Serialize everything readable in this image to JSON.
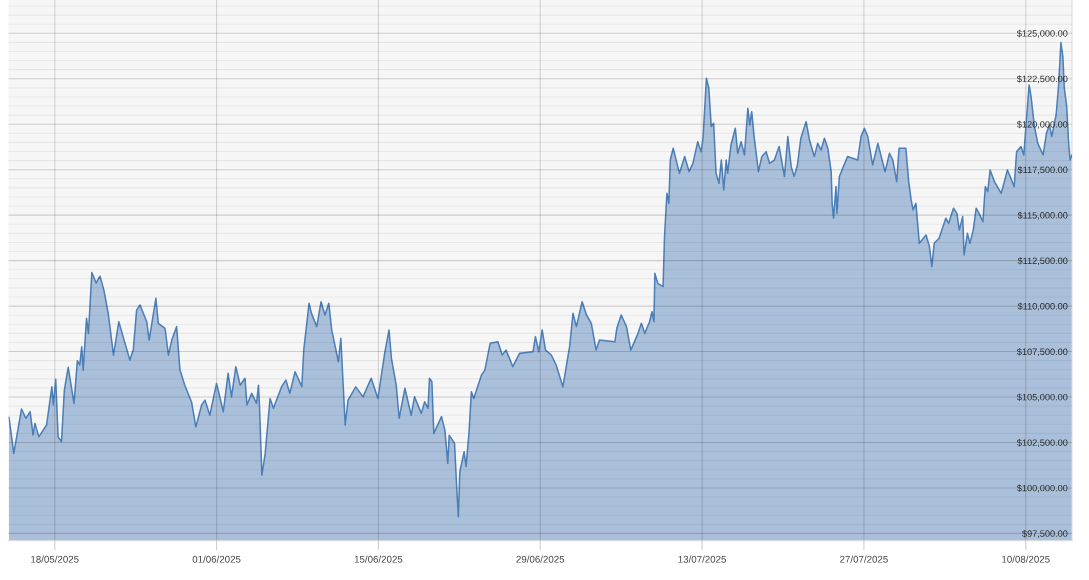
{
  "chart_data": {
    "type": "area",
    "x": [
      "2025-05-14T01:00",
      "2025-05-14T11:00",
      "2025-05-15T03:00",
      "2025-05-15T12:00",
      "2025-05-15T21:00",
      "2025-05-16T03:00",
      "2025-05-16T07:00",
      "2025-05-16T15:00",
      "2025-05-17T07:00",
      "2025-05-17T18:00",
      "2025-05-17T21:00",
      "2025-05-18T02:00",
      "2025-05-18T07:00",
      "2025-05-18T14:00",
      "2025-05-18T20:00",
      "2025-05-19T04:00",
      "2025-05-19T16:00",
      "2025-05-19T23:00",
      "2025-05-20T04:00",
      "2025-05-20T08:00",
      "2025-05-20T11:00",
      "2025-05-20T18:00",
      "2025-05-20T22:00",
      "2025-05-21T05:00",
      "2025-05-21T14:00",
      "2025-05-21T22:00",
      "2025-05-22T06:00",
      "2025-05-22T15:00",
      "2025-05-22T19:00",
      "2025-05-23T02:00",
      "2025-05-23T13:00",
      "2025-05-24T02:00",
      "2025-05-24T12:00",
      "2025-05-24T19:00",
      "2025-05-25T02:00",
      "2025-05-25T09:00",
      "2025-05-25T23:00",
      "2025-05-26T04:00",
      "2025-05-26T18:00",
      "2025-05-26T23:00",
      "2025-05-27T13:00",
      "2025-05-27T20:00",
      "2025-05-28T03:00",
      "2025-05-28T13:00",
      "2025-05-28T20:00",
      "2025-05-29T06:00",
      "2025-05-29T20:00",
      "2025-05-30T05:00",
      "2025-05-30T17:00",
      "2025-05-31T00:00",
      "2025-05-31T10:00",
      "2025-06-01T00:00",
      "2025-06-01T14:00",
      "2025-06-02T00:00",
      "2025-06-02T07:00",
      "2025-06-02T16:00",
      "2025-06-03T01:00",
      "2025-06-03T11:00",
      "2025-06-03T15:00",
      "2025-06-04T01:00",
      "2025-06-04T11:00",
      "2025-06-04T15:00",
      "2025-06-04T17:00",
      "2025-06-04T22:00",
      "2025-06-05T05:00",
      "2025-06-05T15:00",
      "2025-06-05T22:00",
      "2025-06-06T15:00",
      "2025-06-07T00:00",
      "2025-06-07T08:00",
      "2025-06-07T19:00",
      "2025-06-08T09:00",
      "2025-06-08T13:00",
      "2025-06-09T00:00",
      "2025-06-09T05:00",
      "2025-06-09T16:00",
      "2025-06-10T01:00",
      "2025-06-10T09:00",
      "2025-06-10T17:00",
      "2025-06-10T23:00",
      "2025-06-11T13:00",
      "2025-06-11T18:00",
      "2025-06-12T03:00",
      "2025-06-12T09:00",
      "2025-06-13T01:00",
      "2025-06-13T16:00",
      "2025-06-14T09:00",
      "2025-06-14T23:00",
      "2025-06-15T13:00",
      "2025-06-15T22:00",
      "2025-06-16T03:00",
      "2025-06-16T13:00",
      "2025-06-16T19:00",
      "2025-06-17T07:00",
      "2025-06-17T20:00",
      "2025-06-18T03:00",
      "2025-06-18T17:00",
      "2025-06-19T00:00",
      "2025-06-19T07:00",
      "2025-06-19T10:00",
      "2025-06-19T15:00",
      "2025-06-19T19:00",
      "2025-06-20T11:00",
      "2025-06-20T18:00",
      "2025-06-21T00:00",
      "2025-06-21T03:00",
      "2025-06-21T14:00",
      "2025-06-21T19:00",
      "2025-06-21T22:00",
      "2025-06-22T01:00",
      "2025-06-22T10:00",
      "2025-06-22T14:00",
      "2025-06-22T20:00",
      "2025-06-23T01:00",
      "2025-06-23T06:00",
      "2025-06-23T22:00",
      "2025-06-24T05:00",
      "2025-06-24T16:00",
      "2025-06-25T08:00",
      "2025-06-25T17:00",
      "2025-06-26T01:00",
      "2025-06-26T15:00",
      "2025-06-27T05:00",
      "2025-06-28T09:00",
      "2025-06-28T14:00",
      "2025-06-28T21:00",
      "2025-06-29T04:00",
      "2025-06-29T11:00",
      "2025-06-29T23:00",
      "2025-06-30T09:00",
      "2025-06-30T23:00",
      "2025-07-01T06:00",
      "2025-07-01T13:00",
      "2025-07-01T20:00",
      "2025-07-02T03:00",
      "2025-07-02T15:00",
      "2025-07-03T00:00",
      "2025-07-03T10:00",
      "2025-07-03T20:00",
      "2025-07-04T03:00",
      "2025-07-05T11:00",
      "2025-07-05T15:00",
      "2025-07-06T00:00",
      "2025-07-06T11:00",
      "2025-07-06T20:00",
      "2025-07-07T11:00",
      "2025-07-07T18:00",
      "2025-07-08T01:00",
      "2025-07-08T11:00",
      "2025-07-08T16:00",
      "2025-07-08T20:00",
      "2025-07-08T22:00",
      "2025-07-09T04:00",
      "2025-07-09T15:00",
      "2025-07-09T18:00",
      "2025-07-09T23:00",
      "2025-07-10T03:00",
      "2025-07-10T06:00",
      "2025-07-10T12:00",
      "2025-07-11T01:00",
      "2025-07-11T12:00",
      "2025-07-11T21:00",
      "2025-07-12T05:00",
      "2025-07-12T15:00",
      "2025-07-12T22:00",
      "2025-07-13T02:00",
      "2025-07-13T09:00",
      "2025-07-13T14:00",
      "2025-07-13T19:00",
      "2025-07-14T00:00",
      "2025-07-14T05:00",
      "2025-07-14T11:00",
      "2025-07-14T16:00",
      "2025-07-14T21:00",
      "2025-07-15T02:00",
      "2025-07-15T05:00",
      "2025-07-15T12:00",
      "2025-07-15T21:00",
      "2025-07-16T02:00",
      "2025-07-16T09:00",
      "2025-07-16T16:00",
      "2025-07-16T23:00",
      "2025-07-17T03:00",
      "2025-07-17T07:00",
      "2025-07-17T12:00",
      "2025-07-17T21:00",
      "2025-07-18T04:00",
      "2025-07-18T13:00",
      "2025-07-18T20:00",
      "2025-07-19T06:00",
      "2025-07-19T16:00",
      "2025-07-20T03:00",
      "2025-07-20T10:00",
      "2025-07-20T17:00",
      "2025-07-20T23:00",
      "2025-07-21T06:00",
      "2025-07-21T13:00",
      "2025-07-22T00:00",
      "2025-07-22T07:00",
      "2025-07-22T17:00",
      "2025-07-23T00:00",
      "2025-07-23T07:00",
      "2025-07-23T14:00",
      "2025-07-23T21:00",
      "2025-07-24T04:00",
      "2025-07-24T06:00",
      "2025-07-24T09:00",
      "2025-07-24T14:00",
      "2025-07-24T16:00",
      "2025-07-24T21:00",
      "2025-07-25T04:00",
      "2025-07-25T14:00",
      "2025-07-26T11:00",
      "2025-07-26T18:00",
      "2025-07-27T01:00",
      "2025-07-27T08:00",
      "2025-07-27T18:00",
      "2025-07-28T05:00",
      "2025-07-28T11:00",
      "2025-07-28T20:00",
      "2025-07-29T05:00",
      "2025-07-29T12:00",
      "2025-07-29T20:00",
      "2025-07-30T01:00",
      "2025-07-30T15:00",
      "2025-07-30T21:00",
      "2025-07-31T02:00",
      "2025-07-31T06:00",
      "2025-07-31T12:00",
      "2025-07-31T19:00",
      "2025-08-01T09:00",
      "2025-08-01T16:00",
      "2025-08-01T21:00",
      "2025-08-02T02:00",
      "2025-08-02T12:00",
      "2025-08-03T02:00",
      "2025-08-03T08:00",
      "2025-08-03T18:00",
      "2025-08-04T01:00",
      "2025-08-04T06:00",
      "2025-08-04T13:00",
      "2025-08-04T16:00",
      "2025-08-04T23:00",
      "2025-08-05T04:00",
      "2025-08-05T11:00",
      "2025-08-05T17:00",
      "2025-08-05T23:00",
      "2025-08-06T07:00",
      "2025-08-06T12:00",
      "2025-08-06T17:00",
      "2025-08-06T22:00",
      "2025-08-07T07:00",
      "2025-08-07T21:00",
      "2025-08-08T10:00",
      "2025-08-09T00:00",
      "2025-08-09T05:00",
      "2025-08-09T14:00",
      "2025-08-09T20:00",
      "2025-08-10T00:00",
      "2025-08-10T07:00",
      "2025-08-10T11:00",
      "2025-08-10T18:00",
      "2025-08-11T01:00",
      "2025-08-11T12:00",
      "2025-08-11T19:00",
      "2025-08-12T01:00",
      "2025-08-12T06:00",
      "2025-08-12T15:00",
      "2025-08-12T20:00",
      "2025-08-13T01:00",
      "2025-08-13T05:00",
      "2025-08-13T08:00",
      "2025-08-13T13:00",
      "2025-08-13T17:00",
      "2025-08-13T20:00",
      "2025-08-14T00:00"
    ],
    "series": [
      {
        "color": "#4d7fb8",
        "values": [
          103880,
          101900,
          104340,
          103830,
          104190,
          102910,
          103550,
          102810,
          103460,
          105560,
          104560,
          105970,
          102810,
          102540,
          105380,
          106630,
          104650,
          107000,
          106760,
          107760,
          106480,
          109330,
          108500,
          111850,
          111270,
          111650,
          110880,
          109600,
          108780,
          107300,
          109140,
          107950,
          107030,
          107580,
          109780,
          110060,
          109140,
          108130,
          110430,
          109050,
          108780,
          107300,
          108130,
          108870,
          106480,
          105650,
          104730,
          103360,
          104560,
          104830,
          104000,
          105750,
          104190,
          106300,
          105010,
          106670,
          105650,
          106030,
          104560,
          105200,
          104650,
          105650,
          104560,
          100700,
          101900,
          104920,
          104380,
          105570,
          105930,
          105200,
          106390,
          105570,
          107580,
          110150,
          109600,
          108870,
          110240,
          109510,
          110150,
          108680,
          106940,
          108230,
          103460,
          104830,
          105560,
          105010,
          106030,
          104920,
          107400,
          108680,
          107130,
          105650,
          103830,
          105480,
          104000,
          105010,
          104100,
          104740,
          104380,
          106030,
          105840,
          103000,
          103920,
          103180,
          101350,
          102900,
          102450,
          99790,
          98420,
          100890,
          101990,
          101170,
          103000,
          105290,
          104920,
          106210,
          106480,
          107950,
          108040,
          107310,
          107580,
          106670,
          107400,
          107490,
          108320,
          107490,
          108680,
          107580,
          107310,
          106760,
          105560,
          106670,
          107770,
          109600,
          108870,
          110240,
          109510,
          109050,
          107580,
          108130,
          108040,
          108780,
          109510,
          108870,
          107580,
          108500,
          109050,
          108500,
          109140,
          109690,
          109140,
          111800,
          111250,
          111070,
          113820,
          116200,
          115650,
          118030,
          118680,
          117300,
          118220,
          117390,
          117850,
          119040,
          118490,
          119230,
          122530,
          121980,
          119870,
          120050,
          117300,
          116750,
          118030,
          116390,
          118030,
          117300,
          118860,
          119780,
          118400,
          119040,
          118310,
          120880,
          119960,
          120690,
          119320,
          117390,
          118220,
          118490,
          117850,
          118030,
          118770,
          117120,
          119320,
          117670,
          117120,
          117760,
          119230,
          120140,
          119130,
          118220,
          118950,
          118580,
          119230,
          118680,
          117390,
          115650,
          114830,
          116570,
          115100,
          117120,
          117580,
          118220,
          118030,
          119320,
          119780,
          119320,
          117760,
          118950,
          118310,
          117390,
          118400,
          118030,
          116840,
          118680,
          118680,
          116840,
          115840,
          115290,
          115650,
          113450,
          113910,
          113270,
          112170,
          113450,
          113730,
          114830,
          114550,
          115380,
          115100,
          114180,
          114920,
          112810,
          114000,
          113450,
          114180,
          115380,
          115100,
          114640,
          116570,
          116290,
          117480,
          116840,
          116200,
          117480,
          116570,
          118490,
          118770,
          118310,
          119780,
          122160,
          121520,
          119870,
          118950,
          118310,
          119500,
          119960,
          119320,
          120510,
          122070,
          124490,
          123720,
          121980,
          120970,
          118950,
          118030,
          118310
        ]
      }
    ],
    "xlim": [
      "2025-05-14T00:00",
      "2025-08-14T00:00"
    ],
    "xticks": [
      {
        "value": "2025-05-18",
        "label": "18/05/2025"
      },
      {
        "value": "2025-06-01",
        "label": "01/06/2025"
      },
      {
        "value": "2025-06-15",
        "label": "15/06/2025"
      },
      {
        "value": "2025-06-29",
        "label": "29/06/2025"
      },
      {
        "value": "2025-07-13",
        "label": "13/07/2025"
      },
      {
        "value": "2025-07-27",
        "label": "27/07/2025"
      },
      {
        "value": "2025-08-10",
        "label": "10/08/2025"
      }
    ],
    "ylim": [
      97100,
      126830
    ],
    "yticks": [
      {
        "value": 97500,
        "label": "$97,500.00"
      },
      {
        "value": 98000,
        "label": null
      },
      {
        "value": 98500,
        "label": null
      },
      {
        "value": 99000,
        "label": null
      },
      {
        "value": 99500,
        "label": null
      },
      {
        "value": 100000,
        "label": "$100,000.00"
      },
      {
        "value": 100500,
        "label": null
      },
      {
        "value": 101000,
        "label": null
      },
      {
        "value": 101500,
        "label": null
      },
      {
        "value": 102000,
        "label": null
      },
      {
        "value": 102500,
        "label": "$102,500.00"
      },
      {
        "value": 103000,
        "label": null
      },
      {
        "value": 103500,
        "label": null
      },
      {
        "value": 104000,
        "label": null
      },
      {
        "value": 104500,
        "label": null
      },
      {
        "value": 105000,
        "label": "$105,000.00"
      },
      {
        "value": 105500,
        "label": null
      },
      {
        "value": 106000,
        "label": null
      },
      {
        "value": 106500,
        "label": null
      },
      {
        "value": 107000,
        "label": null
      },
      {
        "value": 107500,
        "label": "$107,500.00"
      },
      {
        "value": 108000,
        "label": null
      },
      {
        "value": 108500,
        "label": null
      },
      {
        "value": 109000,
        "label": null
      },
      {
        "value": 109500,
        "label": null
      },
      {
        "value": 110000,
        "label": "$110,000.00"
      },
      {
        "value": 110500,
        "label": null
      },
      {
        "value": 111000,
        "label": null
      },
      {
        "value": 111500,
        "label": null
      },
      {
        "value": 112000,
        "label": null
      },
      {
        "value": 112500,
        "label": "$112,500.00"
      },
      {
        "value": 113000,
        "label": null
      },
      {
        "value": 113500,
        "label": null
      },
      {
        "value": 114000,
        "label": null
      },
      {
        "value": 114500,
        "label": null
      },
      {
        "value": 115000,
        "label": "$115,000.00"
      },
      {
        "value": 115500,
        "label": null
      },
      {
        "value": 116000,
        "label": null
      },
      {
        "value": 116500,
        "label": null
      },
      {
        "value": 117000,
        "label": null
      },
      {
        "value": 117500,
        "label": "$117,500.00"
      },
      {
        "value": 118000,
        "label": null
      },
      {
        "value": 118500,
        "label": null
      },
      {
        "value": 119000,
        "label": null
      },
      {
        "value": 119500,
        "label": null
      },
      {
        "value": 120000,
        "label": "$120,000.00"
      },
      {
        "value": 120500,
        "label": null
      },
      {
        "value": 121000,
        "label": null
      },
      {
        "value": 121500,
        "label": null
      },
      {
        "value": 122000,
        "label": null
      },
      {
        "value": 122500,
        "label": "$122,500.00"
      },
      {
        "value": 123000,
        "label": null
      },
      {
        "value": 123500,
        "label": null
      },
      {
        "value": 124000,
        "label": null
      },
      {
        "value": 124500,
        "label": null
      },
      {
        "value": 125000,
        "label": "$125,000.00"
      },
      {
        "value": 125500,
        "label": null
      },
      {
        "value": 126000,
        "label": null
      },
      {
        "value": 126500,
        "label": null
      }
    ],
    "grid": true
  }
}
